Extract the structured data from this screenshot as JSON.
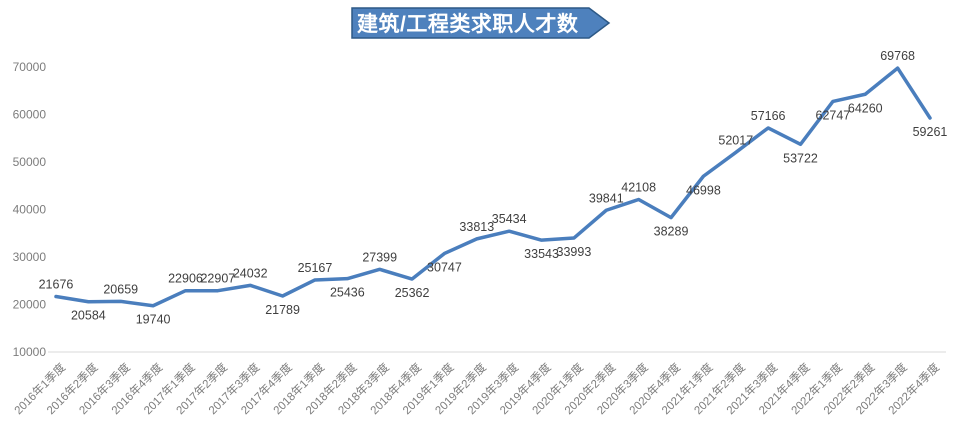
{
  "chart_data": {
    "type": "line",
    "title": "建筑/工程类求职人才数",
    "categories": [
      "2016年1季度",
      "2016年2季度",
      "2016年3季度",
      "2016年4季度",
      "2017年1季度",
      "2017年2季度",
      "2017年3季度",
      "2017年4季度",
      "2018年1季度",
      "2018年2季度",
      "2018年3季度",
      "2018年4季度",
      "2019年1季度",
      "2019年2季度",
      "2019年3季度",
      "2019年4季度",
      "2020年1季度",
      "2020年2季度",
      "2020年3季度",
      "2020年4季度",
      "2021年1季度",
      "2021年2季度",
      "2021年3季度",
      "2021年4季度",
      "2022年1季度",
      "2022年2季度",
      "2022年3季度",
      "2022年4季度"
    ],
    "values": [
      21676,
      20584,
      20659,
      19740,
      22906,
      22907,
      24032,
      21789,
      25167,
      25436,
      27399,
      25362,
      30747,
      33813,
      35434,
      33543,
      33993,
      39841,
      42108,
      38289,
      46998,
      52017,
      57166,
      53722,
      62747,
      64260,
      69768,
      59261
    ],
    "label_positions": [
      "above",
      "below",
      "above",
      "below",
      "above",
      "above",
      "above",
      "below",
      "above",
      "below",
      "above",
      "below",
      "below",
      "above",
      "above",
      "below",
      "below",
      "above",
      "above",
      "below",
      "below",
      "above",
      "above",
      "below",
      "below",
      "below",
      "above",
      "below"
    ],
    "yticks": [
      10000,
      20000,
      30000,
      40000,
      50000,
      60000,
      70000
    ],
    "ylim": [
      10000,
      70000
    ],
    "grid": false,
    "legend": "none",
    "xlabel": "",
    "ylabel": "",
    "colors": {
      "line": "#4A7EBD",
      "banner_fill": "#4E81BD",
      "banner_border": "#2D5986",
      "title_text": "#FFFFFF",
      "data_label": "#3F3F3F",
      "axis_label": "#7D7D7D",
      "axis_line": "#D9D9D9"
    }
  }
}
